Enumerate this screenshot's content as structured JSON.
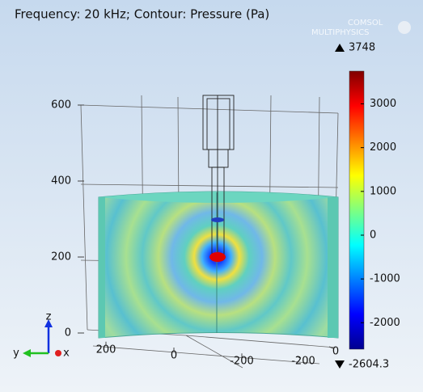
{
  "title": "Frequency: 20 kHz; Contour: Pressure (Pa)",
  "logo": [
    "COMSOL",
    "MULTIPHYSICS"
  ],
  "colorbar": {
    "max": 3748,
    "min": -2604.3,
    "ticks": [
      3000,
      2000,
      1000,
      0,
      -1000,
      -2000
    ]
  },
  "axes": {
    "z_ticks": [
      600,
      400,
      200,
      0
    ],
    "y_ticks": [
      200,
      0,
      -200
    ],
    "x_ticks": [
      -200,
      0
    ],
    "triad": [
      "z",
      "y",
      "x"
    ]
  }
}
